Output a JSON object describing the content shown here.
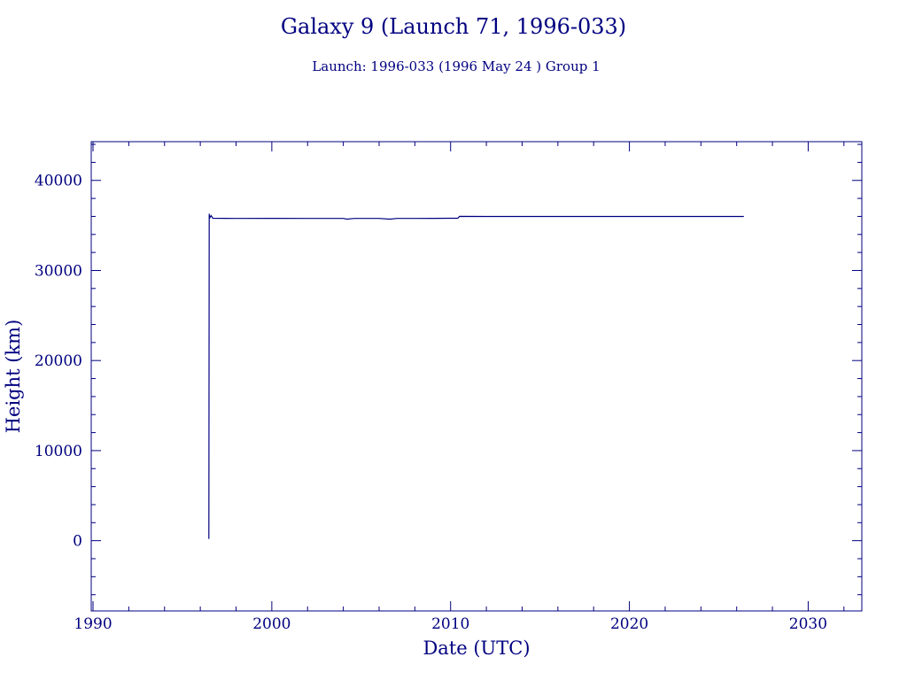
{
  "colors": {
    "ink": "#000080",
    "background": "#ffffff"
  },
  "chart_data": {
    "type": "line",
    "title": "Galaxy 9 (Launch 71, 1996-033)",
    "subtitle": "Launch: 1996-033  (1996 May 24 )  Group 1",
    "xlabel": "Date (UTC)",
    "ylabel": "Height (km)",
    "xlim": [
      1989.9,
      2033.0
    ],
    "ylim": [
      -7800,
      44300
    ],
    "x_ticks": [
      1990,
      2000,
      2010,
      2020,
      2030
    ],
    "x_minor_step": 2,
    "y_ticks": [
      0,
      10000,
      20000,
      30000,
      40000
    ],
    "y_minor_step": 2000,
    "grid": false,
    "legend": "none",
    "series": [
      {
        "values_x": [
          1996.48,
          1996.5,
          1996.52,
          1996.6,
          1996.7,
          1998.0,
          2000.0,
          2002.0,
          2004.0,
          2004.2,
          2004.6,
          2006.0,
          2006.6,
          2007.0,
          2008.0,
          2009.0,
          2010.4,
          2010.5,
          2012.0,
          2015.0,
          2020.0,
          2025.0,
          2026.4
        ],
        "values_y": [
          200,
          36300,
          35800,
          36100,
          35800,
          35780,
          35790,
          35780,
          35780,
          35700,
          35780,
          35780,
          35700,
          35780,
          35780,
          35790,
          35800,
          36000,
          35990,
          35990,
          35990,
          35990,
          35990
        ]
      }
    ]
  }
}
